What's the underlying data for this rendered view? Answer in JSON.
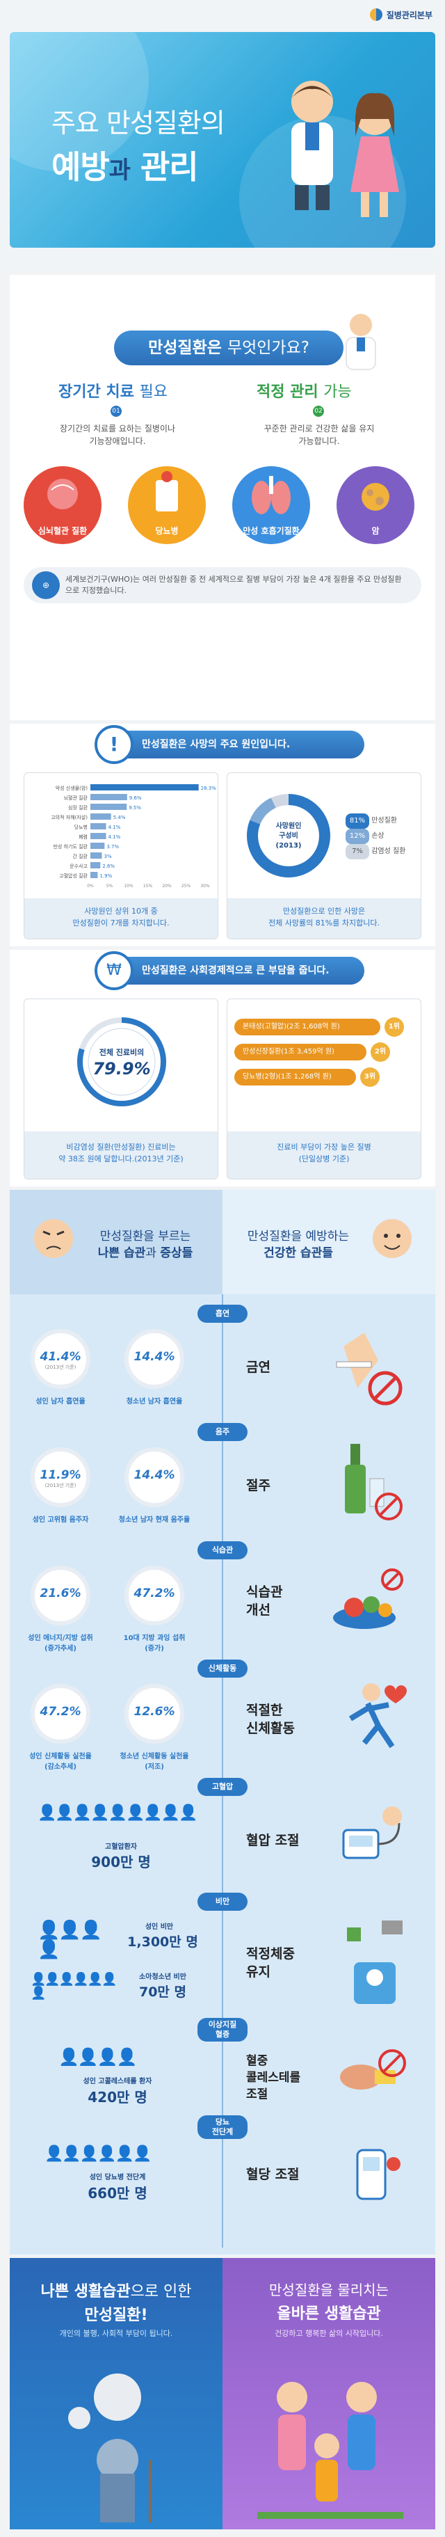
{
  "brand": "질병관리본부",
  "hero": {
    "line1": "주요 만성질환의",
    "line2a": "예방",
    "line2b": "과",
    "line2c": "관리"
  },
  "s1": {
    "q_pre": "만성질환은",
    "q_post": "무엇인가요?",
    "left_title": "장기간 치료",
    "left_title2": "필요",
    "left_num": "01",
    "left_desc": "장기간의 치료를 요하는 질병이나 기능장애입니다.",
    "right_title": "적정 관리",
    "right_title2": "가능",
    "right_num": "02",
    "right_desc": "꾸준한 관리로 건강한 삶을 유지 가능합니다.",
    "circles": [
      "심뇌혈관 질환",
      "당뇨병",
      "만성 호흡기질환",
      "암"
    ],
    "who": "세계보건기구(WHO)는 여러 만성질환 중 전 세계적으로 질병 부담이 가장 높은 4개 질환을 주요 만성질환으로 지정했습니다."
  },
  "s2": {
    "title": "만성질환은 사망의 주요 원인입니다.",
    "bars": [
      {
        "label": "악성 신생물(암)",
        "value": 28.3
      },
      {
        "label": "뇌혈관 질환",
        "value": 9.6
      },
      {
        "label": "심장 질환",
        "value": 9.5
      },
      {
        "label": "고의적 자해(자살)",
        "value": 5.4
      },
      {
        "label": "당뇨병",
        "value": 4.1
      },
      {
        "label": "폐렴",
        "value": 4.1
      },
      {
        "label": "만성 하기도 질환",
        "value": 3.7
      },
      {
        "label": "간 질환",
        "value": 3.0
      },
      {
        "label": "운수사고",
        "value": 2.6
      },
      {
        "label": "고혈압성 질환",
        "value": 1.9
      }
    ],
    "axis": [
      "0%",
      "5%",
      "10%",
      "15%",
      "20%",
      "25%",
      "30%"
    ],
    "left_cap": "사망원인 상위 10개 중\n만성질환이 7개를 차지합니다.",
    "donut_center": "사망원인\n구성비\n(2013)",
    "donut": [
      {
        "label": "만성질환",
        "pct": "81%"
      },
      {
        "label": "손상",
        "pct": "12%"
      },
      {
        "label": "감염성 질환",
        "pct": "7%"
      }
    ],
    "right_cap": "만성질환으로 인한 사망은\n전체 사망률의 81%를 차지합니다."
  },
  "s3": {
    "title": "만성질환은 사회경제적으로 큰 부담을 줍니다.",
    "ring_top": "전체 진료비의",
    "ring_val": "79.9%",
    "left_cap": "비감염성 질환(만성질환) 진료비는\n약 38조 원에 달합니다.(2013년 기준)",
    "items": [
      "본태성(고혈압)(2조 1,608억 원)",
      "만성신장질환(1조 3,459억 원)",
      "당뇨병(2형)(1조 1,268억 원)"
    ],
    "ranks": [
      "1위",
      "2위",
      "3위"
    ],
    "right_cap": "진료비 부담이 가장 높은 질병\n(단일상병 기준)"
  },
  "s4": {
    "left_h1": "만성질환을 부르는",
    "left_h2a": "나쁜 습관",
    "left_h2b": "과",
    "left_h2c": "증상들",
    "right_h1": "만성질환을 예방하는",
    "right_h2": "건강한 습관들",
    "labels": [
      "흡연",
      "음주",
      "식습관",
      "신체활동",
      "고혈압",
      "비만",
      "이상지질\n혈증",
      "당뇨\n전단계"
    ],
    "smoke": {
      "s1": "41.4%",
      "s1l": "성인 남자 흡연율",
      "s2": "14.4%",
      "s2l": "청소년 남자 흡연율",
      "sub1": "(2013년 기준)",
      "habit": "금연"
    },
    "drink": {
      "s1": "11.9%",
      "s1l": "성인 고위험 음주자",
      "s2": "14.4%",
      "s2l": "청소년 남자 현재 음주율",
      "sub1": "(2013년 기준)",
      "habit": "절주"
    },
    "diet": {
      "s1": "21.6%",
      "s1l": "성인 에너지/지방 섭취\n(증가추세)",
      "s2": "47.2%",
      "s2l": "10대 지방 과잉 섭취\n(증가)",
      "habit": "식습관\n개선"
    },
    "act": {
      "s1": "47.2%",
      "s1l": "성인 신체활동 실천율\n(감소추세)",
      "s2": "12.6%",
      "s2l": "청소년 신체활동 실천율\n(저조)",
      "habit": "적절한\n신체활동"
    },
    "bp": {
      "l1": "고혈압환자",
      "l2": "900만 명",
      "habit": "혈압 조절"
    },
    "ob": {
      "a1": "성인 비만",
      "a2": "1,300만 명",
      "b1": "소아청소년 비만",
      "b2": "70만 명",
      "habit": "적정체중\n유지"
    },
    "lipid": {
      "l1": "성인 고콜레스테롤 환자",
      "l2": "420만 명",
      "habit": "혈중\n콜레스테롤\n조절"
    },
    "dm": {
      "l1": "성인 당뇨병 전단계",
      "l2": "660만 명",
      "habit": "혈당 조절"
    }
  },
  "bottom": {
    "l1": "나쁜 생활습관",
    "l1b": "으로 인한",
    "l2": "만성질환!",
    "l3": "개인의 불행, 사회적 부담이 됩니다.",
    "r1": "만성질환을 물리치는",
    "r2": "올바른 생활습관",
    "r3": "건강하고 행복한 삶의 시작입니다."
  },
  "colors": {
    "primary": "#2b78c5",
    "green": "#35a04a",
    "navy": "#1d4a86"
  }
}
